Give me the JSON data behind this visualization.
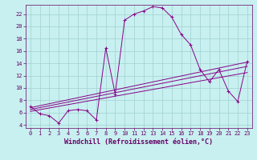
{
  "title": "",
  "xlabel": "Windchill (Refroidissement éolien,°C)",
  "bg_color": "#c8f0f0",
  "grid_color": "#a0d0d0",
  "line_color": "#880088",
  "xlim": [
    -0.5,
    23.5
  ],
  "ylim": [
    3.5,
    23.5
  ],
  "xticks": [
    0,
    1,
    2,
    3,
    4,
    5,
    6,
    7,
    8,
    9,
    10,
    11,
    12,
    13,
    14,
    15,
    16,
    17,
    18,
    19,
    20,
    21,
    22,
    23
  ],
  "yticks": [
    4,
    6,
    8,
    10,
    12,
    14,
    16,
    18,
    20,
    22
  ],
  "series": [
    {
      "x": [
        0,
        1,
        2,
        3,
        4,
        5,
        6,
        7,
        8,
        9,
        10,
        11,
        12,
        13,
        14,
        15,
        16,
        17,
        18,
        19,
        20,
        21,
        22,
        23
      ],
      "y": [
        7,
        5.8,
        5.5,
        4.3,
        6.3,
        6.5,
        6.3,
        4.8,
        16.5,
        9.0,
        21.0,
        22.0,
        22.5,
        23.2,
        23.0,
        21.5,
        18.7,
        17.0,
        13.0,
        11.0,
        13.0,
        9.5,
        7.8,
        14.3
      ],
      "marker": "+"
    },
    {
      "x": [
        0,
        23
      ],
      "y": [
        6.5,
        13.5
      ],
      "marker": null
    },
    {
      "x": [
        0,
        23
      ],
      "y": [
        6.2,
        12.5
      ],
      "marker": null
    },
    {
      "x": [
        0,
        23
      ],
      "y": [
        6.8,
        14.2
      ],
      "marker": null
    }
  ],
  "font_color": "#660066",
  "tick_fontsize": 5.0,
  "label_fontsize": 6.0
}
